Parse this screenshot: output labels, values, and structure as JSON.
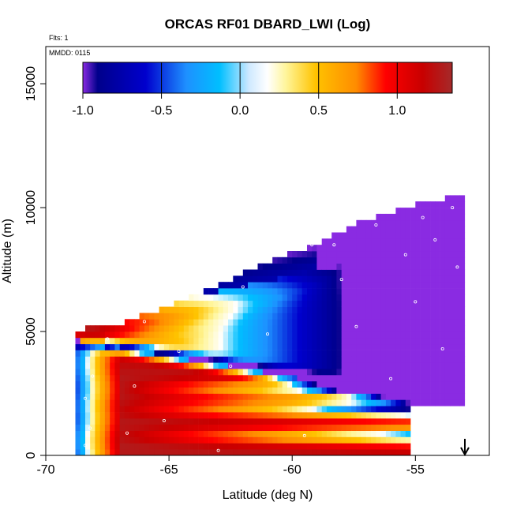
{
  "chart_data": {
    "type": "heatmap",
    "title": "ORCAS RF01 DBARD_LWI (Log)",
    "flights_note": "Flts: 1",
    "date_note": "MMDD: 0115",
    "xlabel": "Latitude (deg N)",
    "ylabel": "Altitude (m)",
    "xlim": [
      -70,
      -52
    ],
    "ylim": [
      0,
      16500
    ],
    "xticks": [
      "-70",
      "-65",
      "-60",
      "-55"
    ],
    "yticks": [
      "0",
      "5000",
      "10000",
      "15000"
    ],
    "colorbar": {
      "ticks": [
        "-1.0",
        "-0.5",
        "0.0",
        "0.5",
        "1.0"
      ],
      "range": [
        -1.0,
        1.35
      ],
      "colors": [
        "#8a2be2",
        "#0000cd",
        "#1e90ff",
        "#00bfff",
        "#ffffff",
        "#ffd700",
        "#ff8c00",
        "#ff0000",
        "#a52a2a"
      ]
    },
    "grid": false,
    "marker": {
      "latitude": -53,
      "symbol": "down-arrow"
    },
    "sample_points": [
      {
        "x": -68.4,
        "y": 400
      },
      {
        "x": -68.2,
        "y": 1100
      },
      {
        "x": -68.4,
        "y": 2300
      },
      {
        "x": -68.1,
        "y": 3200
      },
      {
        "x": -67.5,
        "y": 4700
      },
      {
        "x": -66.7,
        "y": 900
      },
      {
        "x": -66.4,
        "y": 2800
      },
      {
        "x": -66.0,
        "y": 5400
      },
      {
        "x": -65.2,
        "y": 1400
      },
      {
        "x": -64.6,
        "y": 4200
      },
      {
        "x": -63.0,
        "y": 200
      },
      {
        "x": -62.5,
        "y": 3600
      },
      {
        "x": -62.0,
        "y": 6800
      },
      {
        "x": -61.0,
        "y": 4900
      },
      {
        "x": -59.5,
        "y": 800
      },
      {
        "x": -59.2,
        "y": 8500
      },
      {
        "x": -58.3,
        "y": 8500
      },
      {
        "x": -58.0,
        "y": 7100
      },
      {
        "x": -57.4,
        "y": 5200
      },
      {
        "x": -56.6,
        "y": 9300
      },
      {
        "x": -56.0,
        "y": 3100
      },
      {
        "x": -55.4,
        "y": 8100
      },
      {
        "x": -55.0,
        "y": 6200
      },
      {
        "x": -54.7,
        "y": 9600
      },
      {
        "x": -54.2,
        "y": 8700
      },
      {
        "x": -53.9,
        "y": 4300
      },
      {
        "x": -53.5,
        "y": 10000
      },
      {
        "x": -53.3,
        "y": 7600
      },
      {
        "x": -53.2,
        "y": 1800
      },
      {
        "x": -54.4,
        "y": 300
      }
    ]
  }
}
